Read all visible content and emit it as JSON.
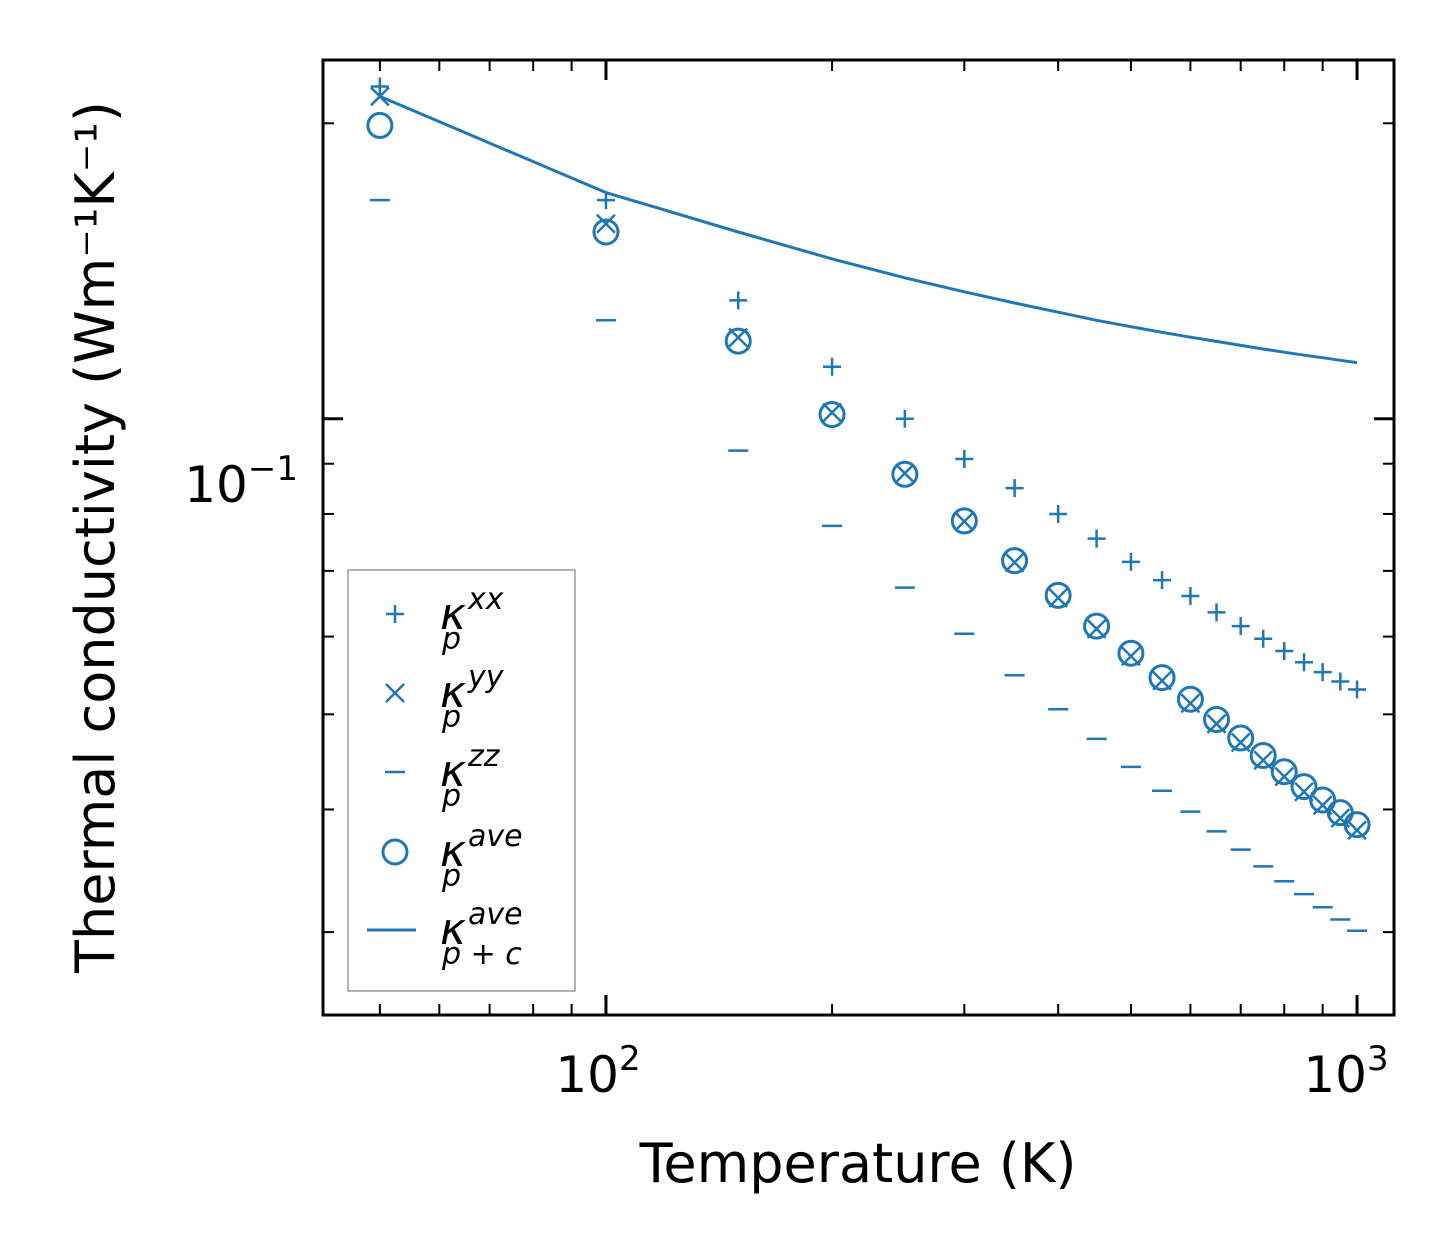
{
  "chart_data": {
    "type": "scatter",
    "xscale": "log",
    "yscale": "log",
    "xlim": [
      42,
      1120
    ],
    "ylim": [
      0.0247,
      0.232
    ],
    "xlabel": "Temperature (K)",
    "ylabel": "Thermal conductivity (Wm⁻¹K⁻¹)",
    "color": "#1f77b4",
    "x_ticks": [
      {
        "base": "10",
        "exp": "2",
        "value": 100
      },
      {
        "base": "10",
        "exp": "3",
        "value": 1000
      }
    ],
    "y_ticks": [
      {
        "base": "10",
        "exp": "−1",
        "value": 0.1
      }
    ],
    "temperature": [
      50,
      100,
      150,
      200,
      250,
      300,
      350,
      400,
      450,
      500,
      550,
      600,
      650,
      700,
      750,
      800,
      850,
      900,
      950,
      1000
    ],
    "series": [
      {
        "name": "kappa_p_xx",
        "label": "κ",
        "sub": "p",
        "sup": "xx",
        "marker": "plus",
        "values": [
          0.218,
          0.167,
          0.132,
          0.113,
          0.1,
          0.091,
          0.085,
          0.08,
          0.0755,
          0.0715,
          0.0685,
          0.066,
          0.0635,
          0.0615,
          0.0597,
          0.058,
          0.0565,
          0.0552,
          0.054,
          0.053
        ]
      },
      {
        "name": "kappa_p_yy",
        "label": "κ",
        "sub": "p",
        "sup": "yy",
        "marker": "x",
        "values": [
          0.213,
          0.158,
          0.121,
          0.1015,
          0.088,
          0.0786,
          0.0714,
          0.0657,
          0.0611,
          0.0573,
          0.0541,
          0.0513,
          0.0489,
          0.0468,
          0.0449,
          0.0432,
          0.0417,
          0.0404,
          0.0392,
          0.0381
        ]
      },
      {
        "name": "kappa_p_zz",
        "label": "κ",
        "sub": "p",
        "sup": "zz",
        "marker": "hline",
        "values": [
          0.167,
          0.126,
          0.0928,
          0.0778,
          0.0673,
          0.0604,
          0.0548,
          0.0506,
          0.0472,
          0.0442,
          0.0418,
          0.0398,
          0.038,
          0.0364,
          0.035,
          0.0338,
          0.0328,
          0.0318,
          0.0309,
          0.0301
        ]
      },
      {
        "name": "kappa_p_ave",
        "label": "κ",
        "sub": "p",
        "sup": "ave",
        "marker": "circle",
        "values": [
          0.199,
          0.155,
          0.12,
          0.101,
          0.0878,
          0.0787,
          0.0717,
          0.0661,
          0.0615,
          0.0577,
          0.0545,
          0.0518,
          0.0494,
          0.0473,
          0.0454,
          0.0437,
          0.0422,
          0.0409,
          0.0397,
          0.0386
        ]
      },
      {
        "name": "kappa_pc_ave",
        "label": "κ",
        "sub": "p + c",
        "sup": "ave",
        "marker": "line",
        "values": [
          0.213,
          0.17,
          0.155,
          0.1455,
          0.1392,
          0.1347,
          0.1312,
          0.1284,
          0.126,
          0.1241,
          0.1225,
          0.1211,
          0.1199,
          0.1188,
          0.1178,
          0.1169,
          0.1161,
          0.1154,
          0.1147,
          0.1141
        ]
      }
    ],
    "legend_position": "bottom-left"
  }
}
